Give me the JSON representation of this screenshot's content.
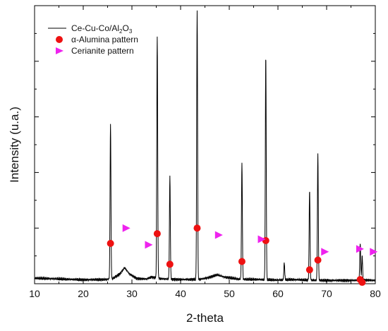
{
  "chart_data": {
    "type": "line",
    "xlabel": "2-theta",
    "ylabel": "Intensity (u.a.)",
    "xlim": [
      10,
      80
    ],
    "ylim": [
      0,
      100
    ],
    "x_ticks": [
      10,
      20,
      30,
      40,
      50,
      60,
      70,
      80
    ],
    "y_tick_labels_shown": false,
    "grid": false,
    "legend_position": "top-left",
    "series": [
      {
        "name": "Ce-Cu-Co/Al2O3",
        "legend_parts": [
          "Ce-Cu-Co/Al",
          "2",
          "O",
          "3"
        ],
        "kind": "line",
        "color": "#000000",
        "baseline": [
          [
            10,
            2.0
          ],
          [
            15,
            1.7
          ],
          [
            20,
            1.4
          ],
          [
            24,
            1.5
          ],
          [
            26,
            1.8
          ],
          [
            27.5,
            3.5
          ],
          [
            28.5,
            5.8
          ],
          [
            29.5,
            3.5
          ],
          [
            31,
            1.9
          ],
          [
            33,
            1.7
          ],
          [
            34,
            2.4
          ],
          [
            36,
            1.8
          ],
          [
            40,
            1.5
          ],
          [
            44,
            1.6
          ],
          [
            46,
            2.3
          ],
          [
            47.5,
            3.2
          ],
          [
            49,
            2.4
          ],
          [
            52,
            1.6
          ],
          [
            56,
            1.5
          ],
          [
            60,
            1.3
          ],
          [
            63,
            1.5
          ],
          [
            66,
            1.3
          ],
          [
            70,
            1.2
          ],
          [
            74,
            1.2
          ],
          [
            78,
            1.3
          ],
          [
            80,
            1.2
          ]
        ],
        "peaks": [
          {
            "x": 25.6,
            "y": 57.5
          },
          {
            "x": 35.2,
            "y": 89.5
          },
          {
            "x": 37.8,
            "y": 38.5
          },
          {
            "x": 43.4,
            "y": 98.5
          },
          {
            "x": 52.6,
            "y": 43.5
          },
          {
            "x": 57.5,
            "y": 82.5
          },
          {
            "x": 61.3,
            "y": 7.5
          },
          {
            "x": 66.5,
            "y": 34.0
          },
          {
            "x": 68.2,
            "y": 46.5
          },
          {
            "x": 76.9,
            "y": 14.5
          },
          {
            "x": 77.3,
            "y": 10.0
          }
        ]
      },
      {
        "name": "α-Alumina pattern",
        "kind": "marker",
        "marker": "circle",
        "color": "#ee1111",
        "points": [
          [
            25.6,
            14.5
          ],
          [
            35.2,
            18.0
          ],
          [
            37.8,
            7.0
          ],
          [
            43.4,
            20.0
          ],
          [
            52.6,
            8.0
          ],
          [
            57.5,
            15.5
          ],
          [
            66.5,
            5.0
          ],
          [
            68.2,
            8.5
          ],
          [
            76.9,
            1.5
          ],
          [
            77.3,
            0.5
          ]
        ]
      },
      {
        "name": "Cerianite pattern",
        "kind": "marker",
        "marker": "triangle-right",
        "color": "#ee22ee",
        "points": [
          [
            28.8,
            20.0
          ],
          [
            33.4,
            14.0
          ],
          [
            47.8,
            17.5
          ],
          [
            56.6,
            16.0
          ],
          [
            69.6,
            11.5
          ],
          [
            76.8,
            12.5
          ],
          [
            79.6,
            11.5
          ]
        ]
      }
    ]
  }
}
